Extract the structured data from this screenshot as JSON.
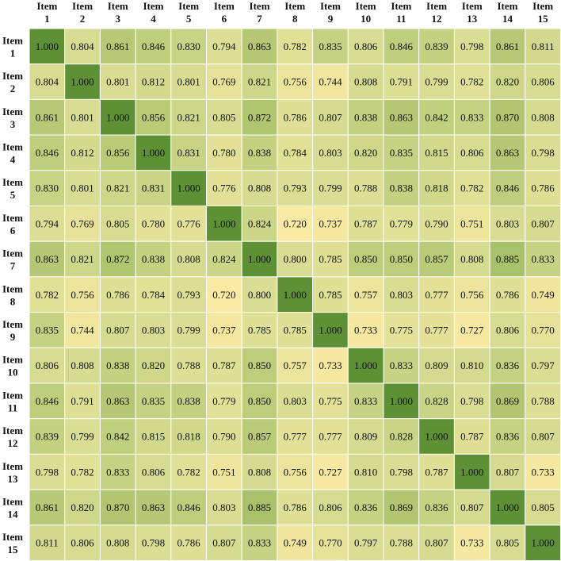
{
  "chart_data": {
    "type": "heatmap",
    "row_label_prefix": "Item",
    "col_label_prefix": "Item",
    "rows": [
      "1",
      "2",
      "3",
      "4",
      "5",
      "6",
      "7",
      "8",
      "9",
      "10",
      "11",
      "12",
      "13",
      "14",
      "15"
    ],
    "cols": [
      "1",
      "2",
      "3",
      "4",
      "5",
      "6",
      "7",
      "8",
      "9",
      "10",
      "11",
      "12",
      "13",
      "14",
      "15"
    ],
    "values": [
      [
        1.0,
        0.804,
        0.861,
        0.846,
        0.83,
        0.794,
        0.863,
        0.782,
        0.835,
        0.806,
        0.846,
        0.839,
        0.798,
        0.861,
        0.811
      ],
      [
        0.804,
        1.0,
        0.801,
        0.812,
        0.801,
        0.769,
        0.821,
        0.756,
        0.744,
        0.808,
        0.791,
        0.799,
        0.782,
        0.82,
        0.806
      ],
      [
        0.861,
        0.801,
        1.0,
        0.856,
        0.821,
        0.805,
        0.872,
        0.786,
        0.807,
        0.838,
        0.863,
        0.842,
        0.833,
        0.87,
        0.808
      ],
      [
        0.846,
        0.812,
        0.856,
        1.0,
        0.831,
        0.78,
        0.838,
        0.784,
        0.803,
        0.82,
        0.835,
        0.815,
        0.806,
        0.863,
        0.798
      ],
      [
        0.83,
        0.801,
        0.821,
        0.831,
        1.0,
        0.776,
        0.808,
        0.793,
        0.799,
        0.788,
        0.838,
        0.818,
        0.782,
        0.846,
        0.786
      ],
      [
        0.794,
        0.769,
        0.805,
        0.78,
        0.776,
        1.0,
        0.824,
        0.72,
        0.737,
        0.787,
        0.779,
        0.79,
        0.751,
        0.803,
        0.807
      ],
      [
        0.863,
        0.821,
        0.872,
        0.838,
        0.808,
        0.824,
        1.0,
        0.8,
        0.785,
        0.85,
        0.85,
        0.857,
        0.808,
        0.885,
        0.833
      ],
      [
        0.782,
        0.756,
        0.786,
        0.784,
        0.793,
        0.72,
        0.8,
        1.0,
        0.785,
        0.757,
        0.803,
        0.777,
        0.756,
        0.786,
        0.749
      ],
      [
        0.835,
        0.744,
        0.807,
        0.803,
        0.799,
        0.737,
        0.785,
        0.785,
        1.0,
        0.733,
        0.775,
        0.777,
        0.727,
        0.806,
        0.77
      ],
      [
        0.806,
        0.808,
        0.838,
        0.82,
        0.788,
        0.787,
        0.85,
        0.757,
        0.733,
        1.0,
        0.833,
        0.809,
        0.81,
        0.836,
        0.797
      ],
      [
        0.846,
        0.791,
        0.863,
        0.835,
        0.838,
        0.779,
        0.85,
        0.803,
        0.775,
        0.833,
        1.0,
        0.828,
        0.798,
        0.869,
        0.788
      ],
      [
        0.839,
        0.799,
        0.842,
        0.815,
        0.818,
        0.79,
        0.857,
        0.777,
        0.777,
        0.809,
        0.828,
        1.0,
        0.787,
        0.836,
        0.807
      ],
      [
        0.798,
        0.782,
        0.833,
        0.806,
        0.782,
        0.751,
        0.808,
        0.756,
        0.727,
        0.81,
        0.798,
        0.787,
        1.0,
        0.807,
        0.733
      ],
      [
        0.861,
        0.82,
        0.87,
        0.863,
        0.846,
        0.803,
        0.885,
        0.786,
        0.806,
        0.836,
        0.869,
        0.836,
        0.807,
        1.0,
        0.805
      ],
      [
        0.811,
        0.806,
        0.808,
        0.798,
        0.786,
        0.807,
        0.833,
        0.749,
        0.77,
        0.797,
        0.788,
        0.807,
        0.733,
        0.805,
        1.0
      ]
    ],
    "value_format": "0.000",
    "color_scale": {
      "low": "#fbeaa3",
      "mid": "#d8dd93",
      "high": "#a9c16a",
      "diagonal": "#5e9136",
      "min_value": 0.72,
      "max_value": 0.885
    },
    "grid": true,
    "title": "",
    "xlabel": "",
    "ylabel": ""
  }
}
